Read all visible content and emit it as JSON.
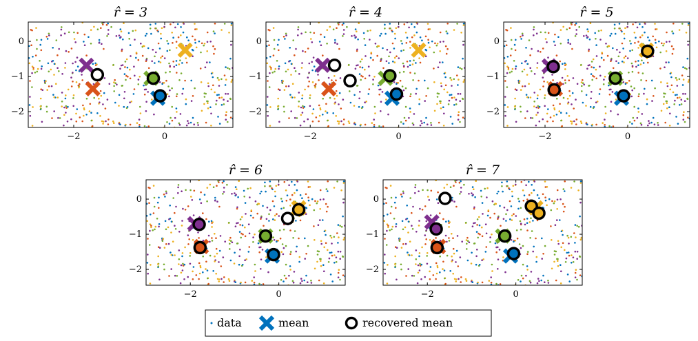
{
  "chart_data": [
    {
      "type": "scatter",
      "title": "r̂ = 3",
      "xlim": [
        -3.0,
        1.5
      ],
      "ylim": [
        -2.45,
        0.55
      ],
      "xticks": [
        -2,
        0
      ],
      "yticks": [
        0,
        -1,
        -2
      ],
      "xtick_labels": [
        "−2",
        "0"
      ],
      "ytick_labels": [
        "0",
        "−1",
        "−2"
      ],
      "means": [
        {
          "x": -1.72,
          "y": -0.68,
          "color": "#7e2f8e"
        },
        {
          "x": -1.58,
          "y": -1.35,
          "color": "#d95319"
        },
        {
          "x": -0.3,
          "y": -1.05,
          "color": "#77ac30"
        },
        {
          "x": -0.15,
          "y": -1.62,
          "color": "#0072bd"
        },
        {
          "x": 0.45,
          "y": -0.25,
          "color": "#edb120"
        }
      ],
      "recovered_means": [
        {
          "x": -1.48,
          "y": -0.95,
          "color": "#ffffff"
        },
        {
          "x": -0.25,
          "y": -1.05,
          "color": "#77ac30"
        },
        {
          "x": -0.1,
          "y": -1.55,
          "color": "#0072bd"
        }
      ]
    },
    {
      "type": "scatter",
      "title": "r̂ = 4",
      "xlim": [
        -3.0,
        1.5
      ],
      "ylim": [
        -2.45,
        0.55
      ],
      "xticks": [
        -2,
        0
      ],
      "yticks": [
        0,
        -1,
        -2
      ],
      "xtick_labels": [
        "−2",
        "0"
      ],
      "ytick_labels": [
        "0",
        "−1",
        "−2"
      ],
      "means": [
        {
          "x": -1.72,
          "y": -0.68,
          "color": "#7e2f8e"
        },
        {
          "x": -1.58,
          "y": -1.35,
          "color": "#d95319"
        },
        {
          "x": -0.3,
          "y": -1.05,
          "color": "#77ac30"
        },
        {
          "x": -0.15,
          "y": -1.62,
          "color": "#0072bd"
        },
        {
          "x": 0.45,
          "y": -0.25,
          "color": "#edb120"
        }
      ],
      "recovered_means": [
        {
          "x": -1.45,
          "y": -0.68,
          "color": "#ffffff"
        },
        {
          "x": -1.1,
          "y": -1.12,
          "color": "#ffffff"
        },
        {
          "x": -0.2,
          "y": -0.98,
          "color": "#77ac30"
        },
        {
          "x": -0.05,
          "y": -1.5,
          "color": "#0072bd"
        }
      ]
    },
    {
      "type": "scatter",
      "title": "r̂ = 5",
      "xlim": [
        -3.0,
        1.5
      ],
      "ylim": [
        -2.45,
        0.55
      ],
      "xticks": [
        -2,
        0
      ],
      "yticks": [
        0,
        -1,
        -2
      ],
      "xtick_labels": [
        "−2",
        "0"
      ],
      "ytick_labels": [
        "0",
        "−1",
        "−2"
      ],
      "means": [
        {
          "x": -1.9,
          "y": -0.7,
          "color": "#7e2f8e"
        },
        {
          "x": -1.75,
          "y": -1.35,
          "color": "#d95319"
        },
        {
          "x": -0.3,
          "y": -1.05,
          "color": "#77ac30"
        },
        {
          "x": -0.15,
          "y": -1.62,
          "color": "#0072bd"
        },
        {
          "x": 0.45,
          "y": -0.25,
          "color": "#edb120"
        }
      ],
      "recovered_means": [
        {
          "x": -1.8,
          "y": -0.72,
          "color": "#7e2f8e"
        },
        {
          "x": -1.78,
          "y": -1.38,
          "color": "#d95319"
        },
        {
          "x": -0.3,
          "y": -1.05,
          "color": "#77ac30"
        },
        {
          "x": -0.1,
          "y": -1.55,
          "color": "#0072bd"
        },
        {
          "x": 0.48,
          "y": -0.28,
          "color": "#edb120"
        }
      ]
    },
    {
      "type": "scatter",
      "title": "r̂ = 6",
      "xlim": [
        -3.0,
        1.5
      ],
      "ylim": [
        -2.45,
        0.55
      ],
      "xticks": [
        -2,
        0
      ],
      "yticks": [
        0,
        -1,
        -2
      ],
      "xtick_labels": [
        "−2",
        "0"
      ],
      "ytick_labels": [
        "0",
        "−1",
        "−2"
      ],
      "means": [
        {
          "x": -1.9,
          "y": -0.7,
          "color": "#7e2f8e"
        },
        {
          "x": -1.75,
          "y": -1.35,
          "color": "#d95319"
        },
        {
          "x": -0.3,
          "y": -1.05,
          "color": "#77ac30"
        },
        {
          "x": -0.15,
          "y": -1.62,
          "color": "#0072bd"
        },
        {
          "x": 0.45,
          "y": -0.25,
          "color": "#edb120"
        }
      ],
      "recovered_means": [
        {
          "x": -1.8,
          "y": -0.72,
          "color": "#7e2f8e"
        },
        {
          "x": -1.78,
          "y": -1.38,
          "color": "#d95319"
        },
        {
          "x": -0.3,
          "y": -1.05,
          "color": "#77ac30"
        },
        {
          "x": -0.12,
          "y": -1.58,
          "color": "#0072bd"
        },
        {
          "x": 0.2,
          "y": -0.55,
          "color": "#ffffff"
        },
        {
          "x": 0.45,
          "y": -0.3,
          "color": "#edb120"
        }
      ]
    },
    {
      "type": "scatter",
      "title": "r̂ = 7",
      "xlim": [
        -3.0,
        1.5
      ],
      "ylim": [
        -2.45,
        0.55
      ],
      "xticks": [
        -2,
        0
      ],
      "yticks": [
        0,
        -1,
        -2
      ],
      "xtick_labels": [
        "−2",
        "0"
      ],
      "ytick_labels": [
        "0",
        "−1",
        "−2"
      ],
      "means": [
        {
          "x": -1.9,
          "y": -0.65,
          "color": "#7e2f8e"
        },
        {
          "x": -1.75,
          "y": -1.35,
          "color": "#d95319"
        },
        {
          "x": -0.3,
          "y": -1.05,
          "color": "#77ac30"
        },
        {
          "x": -0.12,
          "y": -1.62,
          "color": "#0072bd"
        },
        {
          "x": 0.45,
          "y": -0.25,
          "color": "#edb120"
        }
      ],
      "recovered_means": [
        {
          "x": -1.6,
          "y": 0.02,
          "color": "#ffffff"
        },
        {
          "x": -1.8,
          "y": -0.85,
          "color": "#7e2f8e"
        },
        {
          "x": -1.78,
          "y": -1.38,
          "color": "#d95319"
        },
        {
          "x": -0.25,
          "y": -1.05,
          "color": "#77ac30"
        },
        {
          "x": -0.05,
          "y": -1.55,
          "color": "#0072bd"
        },
        {
          "x": 0.35,
          "y": -0.2,
          "color": "#edb120"
        },
        {
          "x": 0.52,
          "y": -0.4,
          "color": "#edb120"
        }
      ]
    }
  ],
  "legend": {
    "entries": [
      {
        "label": "data"
      },
      {
        "label": "mean"
      },
      {
        "label": "recovered mean"
      }
    ]
  },
  "colors": {
    "blue": "#0072bd",
    "orange": "#d95319",
    "yellow": "#edb120",
    "purple": "#7e2f8e",
    "green": "#77ac30"
  }
}
